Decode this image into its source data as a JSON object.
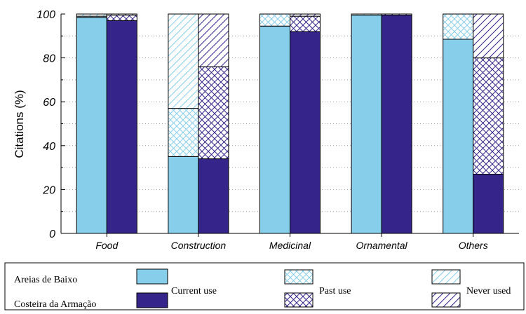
{
  "chart_data": {
    "type": "bar",
    "stacked": true,
    "ylabel": "Citations (%)",
    "xlabel": "",
    "ylim": [
      0,
      100
    ],
    "yticks": [
      "0",
      "20",
      "40",
      "60",
      "80",
      "100"
    ],
    "grid": "horizontal dotted",
    "categories": [
      "Food",
      "Construction",
      "Medicinal",
      "Ornamental",
      "Others"
    ],
    "groups": [
      {
        "name": "Areias de Baixo",
        "color": "#87CEEB",
        "stack": {
          "current_use": [
            98.5,
            35,
            94.5,
            99.5,
            88.5
          ],
          "past_use": [
            0.5,
            22,
            5.5,
            0,
            11.5
          ],
          "never_used": [
            1,
            43,
            0,
            0.5,
            0
          ]
        }
      },
      {
        "name": "Costeira da Armação",
        "color": "#35258A",
        "stack": {
          "current_use": [
            97,
            34,
            92,
            99.5,
            27
          ],
          "past_use": [
            2.5,
            42,
            7,
            0,
            53
          ],
          "never_used": [
            0.5,
            24,
            1,
            0.5,
            20
          ]
        }
      }
    ],
    "legend": {
      "position": "bottom",
      "sites": [
        "Areias de Baixo",
        "Costeira da Armação"
      ],
      "categories": [
        "Current use",
        "Past use",
        "Never used"
      ]
    }
  }
}
